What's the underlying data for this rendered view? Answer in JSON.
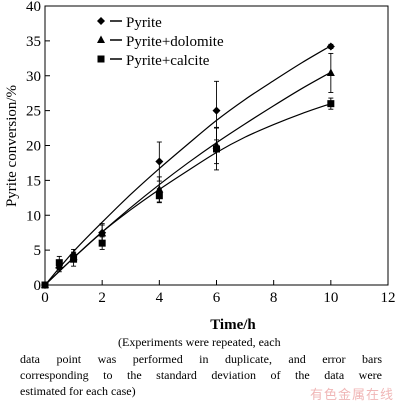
{
  "chart_data": {
    "type": "line",
    "xlabel": "Time/h",
    "ylabel": "Pyrite conversion/%",
    "xlim": [
      0,
      12
    ],
    "ylim": [
      0,
      40
    ],
    "xticks": [
      0,
      2,
      4,
      6,
      8,
      10,
      12
    ],
    "yticks": [
      0,
      5,
      10,
      15,
      20,
      25,
      30,
      35,
      40
    ],
    "legend_position": "top-left",
    "series": [
      {
        "name": "Pyrite",
        "marker": "diamond",
        "points": [
          {
            "x": 0,
            "y": 0,
            "err": 0
          },
          {
            "x": 0.5,
            "y": 2.5,
            "err": 0.6
          },
          {
            "x": 1,
            "y": 4.3,
            "err": 0.8
          },
          {
            "x": 2,
            "y": 7.5,
            "err": 1.3
          },
          {
            "x": 4,
            "y": 17.7,
            "err": 2.8
          },
          {
            "x": 6,
            "y": 25.0,
            "err": 4.2
          },
          {
            "x": 10,
            "y": 34.2,
            "err": 0.3
          }
        ],
        "curve": [
          [
            0,
            0
          ],
          [
            1,
            4.8
          ],
          [
            2,
            9.0
          ],
          [
            3,
            13.0
          ],
          [
            4,
            16.7
          ],
          [
            5,
            20.2
          ],
          [
            6,
            23.6
          ],
          [
            7,
            26.6
          ],
          [
            8,
            29.3
          ],
          [
            9,
            31.9
          ],
          [
            10,
            34.3
          ]
        ]
      },
      {
        "name": "Pyrite+dolomite",
        "marker": "triangle",
        "points": [
          {
            "x": 0,
            "y": 0,
            "err": 0
          },
          {
            "x": 0.5,
            "y": 2.8,
            "err": 0.6
          },
          {
            "x": 1,
            "y": 4.0,
            "err": 0.7
          },
          {
            "x": 2,
            "y": 7.4,
            "err": 1.2
          },
          {
            "x": 4,
            "y": 13.7,
            "err": 1.8
          },
          {
            "x": 6,
            "y": 20.0,
            "err": 2.6
          },
          {
            "x": 10,
            "y": 30.4,
            "err": 2.8
          }
        ],
        "curve": [
          [
            0,
            0
          ],
          [
            1,
            3.9
          ],
          [
            2,
            7.6
          ],
          [
            3,
            11.1
          ],
          [
            4,
            14.4
          ],
          [
            5,
            17.5
          ],
          [
            6,
            20.4
          ],
          [
            7,
            23.1
          ],
          [
            8,
            25.7
          ],
          [
            9,
            28.2
          ],
          [
            10,
            30.5
          ]
        ]
      },
      {
        "name": "Pyrite+calcite",
        "marker": "square",
        "points": [
          {
            "x": 0,
            "y": 0,
            "err": 0
          },
          {
            "x": 0.5,
            "y": 3.2,
            "err": 0.9
          },
          {
            "x": 1,
            "y": 3.7,
            "err": 1.0
          },
          {
            "x": 2,
            "y": 6.0,
            "err": 0.9
          },
          {
            "x": 4,
            "y": 12.8,
            "err": 1.0
          },
          {
            "x": 6,
            "y": 19.5,
            "err": 3.0
          },
          {
            "x": 10,
            "y": 26.0,
            "err": 0.8
          }
        ],
        "curve": [
          [
            0,
            0
          ],
          [
            1,
            3.9
          ],
          [
            2,
            7.6
          ],
          [
            3,
            10.8
          ],
          [
            4,
            13.7
          ],
          [
            5,
            16.4
          ],
          [
            6,
            19.0
          ],
          [
            7,
            21.2
          ],
          [
            8,
            23.0
          ],
          [
            9,
            24.6
          ],
          [
            10,
            26.0
          ]
        ]
      }
    ]
  },
  "caption": {
    "line1": "(Experiments were repeated, each",
    "line2": "data point was performed in duplicate, and error bars",
    "line3": "corresponding to the standard deviation of the data were",
    "line4": "estimated for each case)"
  },
  "watermark": "有色金属在线"
}
